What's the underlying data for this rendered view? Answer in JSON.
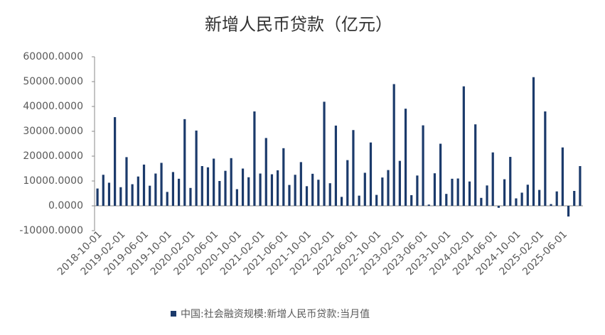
{
  "chart_data": {
    "type": "bar",
    "title": "新增人民币贷款（亿元）",
    "categories": [
      "2018-10-01",
      null,
      null,
      null,
      "2019-02-01",
      null,
      null,
      null,
      "2019-06-01",
      null,
      null,
      null,
      "2019-10-01",
      null,
      null,
      null,
      "2020-02-01",
      null,
      null,
      null,
      "2020-06-01",
      null,
      null,
      null,
      "2020-10-01",
      null,
      null,
      null,
      "2021-02-01",
      null,
      null,
      null,
      "2021-06-01",
      null,
      null,
      null,
      "2021-10-01",
      null,
      null,
      null,
      "2022-02-01",
      null,
      null,
      null,
      "2022-06-01",
      null,
      null,
      null,
      "2022-10-01",
      null,
      null,
      null,
      "2023-02-01",
      null,
      null,
      null,
      "2023-06-01",
      null,
      null,
      null,
      "2023-10-01",
      null,
      null,
      null,
      "2024-02-01",
      null,
      null,
      null,
      "2024-06-01",
      null,
      null,
      null,
      "2024-10-01",
      null,
      null,
      null,
      "2025-02-01",
      null,
      null,
      null,
      "2025-06-01",
      null,
      null,
      null
    ],
    "series": [
      {
        "name": "中国:社会融资规模:新增人民币贷款:当月值",
        "color": "#1b3a6b",
        "values": [
          6970,
          12500,
          9300,
          35700,
          7500,
          19600,
          8700,
          11800,
          16600,
          8100,
          13000,
          17300,
          5600,
          13600,
          10900,
          34900,
          7200,
          30300,
          16000,
          15500,
          19000,
          10000,
          14100,
          19200,
          6700,
          15000,
          11500,
          38000,
          13000,
          27300,
          12700,
          14300,
          23200,
          8400,
          12500,
          17600,
          7900,
          12900,
          10500,
          41900,
          9100,
          32300,
          3600,
          18400,
          30500,
          4100,
          13300,
          25500,
          4400,
          11400,
          14400,
          49000,
          18100,
          39100,
          4300,
          12200,
          32400,
          500,
          13100,
          25000,
          4800,
          10900,
          11000,
          48100,
          9800,
          32800,
          3200,
          8200,
          21500,
          -800,
          10700,
          19700,
          3000,
          5300,
          8500,
          51800,
          6400,
          38000,
          700,
          5800,
          23500,
          -4300,
          6000,
          16000
        ]
      }
    ],
    "ylim": [
      -10000,
      60000
    ],
    "yticks": [
      {
        "value": -10000,
        "label": "-10000.0000"
      },
      {
        "value": 0,
        "label": "0.0000"
      },
      {
        "value": 10000,
        "label": "10000.0000"
      },
      {
        "value": 20000,
        "label": "20000.0000"
      },
      {
        "value": 30000,
        "label": "30000.0000"
      },
      {
        "value": 40000,
        "label": "40000.0000"
      },
      {
        "value": 50000,
        "label": "50000.0000"
      },
      {
        "value": 60000,
        "label": "60000.0000"
      }
    ],
    "grid": false
  }
}
